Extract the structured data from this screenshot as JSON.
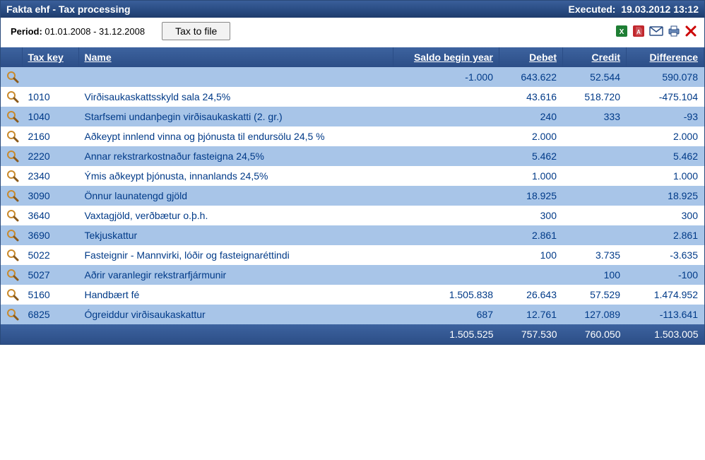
{
  "titlebar": {
    "title": "Fakta ehf - Tax processing",
    "executed_label": "Executed:",
    "executed_value": "19.03.2012 13:12"
  },
  "toolbar": {
    "period_label": "Period:",
    "period_value": "01.01.2008 - 31.12.2008",
    "tax_to_file_label": "Tax to file",
    "icons": {
      "excel": "excel-icon",
      "pdf": "pdf-icon",
      "email": "email-icon",
      "print": "print-icon",
      "close": "close-icon"
    }
  },
  "columns": {
    "tax_key": "Tax key",
    "name": "Name",
    "saldo": "Saldo begin year",
    "debet": "Debet",
    "credit": "Credit",
    "difference": "Difference"
  },
  "rows": [
    {
      "key": "",
      "name": "",
      "saldo": "-1.000",
      "debet": "643.622",
      "credit": "52.544",
      "diff": "590.078"
    },
    {
      "key": "1010",
      "name": "Virðisaukaskattsskyld sala 24,5%",
      "saldo": "",
      "debet": "43.616",
      "credit": "518.720",
      "diff": "-475.104"
    },
    {
      "key": "1040",
      "name": "Starfsemi undanþegin virðisaukaskatti (2. gr.)",
      "saldo": "",
      "debet": "240",
      "credit": "333",
      "diff": "-93"
    },
    {
      "key": "2160",
      "name": "Aðkeypt innlend vinna og þjónusta til endursölu 24,5 %",
      "saldo": "",
      "debet": "2.000",
      "credit": "",
      "diff": "2.000"
    },
    {
      "key": "2220",
      "name": "Annar rekstrarkostnaður fasteigna  24,5%",
      "saldo": "",
      "debet": "5.462",
      "credit": "",
      "diff": "5.462"
    },
    {
      "key": "2340",
      "name": "Ýmis aðkeypt þjónusta, innanlands  24,5%",
      "saldo": "",
      "debet": "1.000",
      "credit": "",
      "diff": "1.000"
    },
    {
      "key": "3090",
      "name": "Önnur launatengd gjöld",
      "saldo": "",
      "debet": "18.925",
      "credit": "",
      "diff": "18.925"
    },
    {
      "key": "3640",
      "name": "Vaxtagjöld, verðbætur o.þ.h.",
      "saldo": "",
      "debet": "300",
      "credit": "",
      "diff": "300"
    },
    {
      "key": "3690",
      "name": "Tekjuskattur",
      "saldo": "",
      "debet": "2.861",
      "credit": "",
      "diff": "2.861"
    },
    {
      "key": "5022",
      "name": "Fasteignir - Mannvirki, lóðir og fasteignaréttindi",
      "saldo": "",
      "debet": "100",
      "credit": "3.735",
      "diff": "-3.635"
    },
    {
      "key": "5027",
      "name": "Aðrir varanlegir rekstrarfjármunir",
      "saldo": "",
      "debet": "",
      "credit": "100",
      "diff": "-100"
    },
    {
      "key": "5160",
      "name": "Handbært fé",
      "saldo": "1.505.838",
      "debet": "26.643",
      "credit": "57.529",
      "diff": "1.474.952"
    },
    {
      "key": "6825",
      "name": "Ógreiddur virðisaukaskattur",
      "saldo": "687",
      "debet": "12.761",
      "credit": "127.089",
      "diff": "-113.641"
    }
  ],
  "footer": {
    "saldo": "1.505.525",
    "debet": "757.530",
    "credit": "760.050",
    "diff": "1.503.005"
  },
  "colors": {
    "header_grad_top": "#3d639f",
    "header_grad_bot": "#2c4e87",
    "row_even": "#a8c5e8",
    "row_odd": "#ffffff",
    "cell_text": "#003a88"
  }
}
